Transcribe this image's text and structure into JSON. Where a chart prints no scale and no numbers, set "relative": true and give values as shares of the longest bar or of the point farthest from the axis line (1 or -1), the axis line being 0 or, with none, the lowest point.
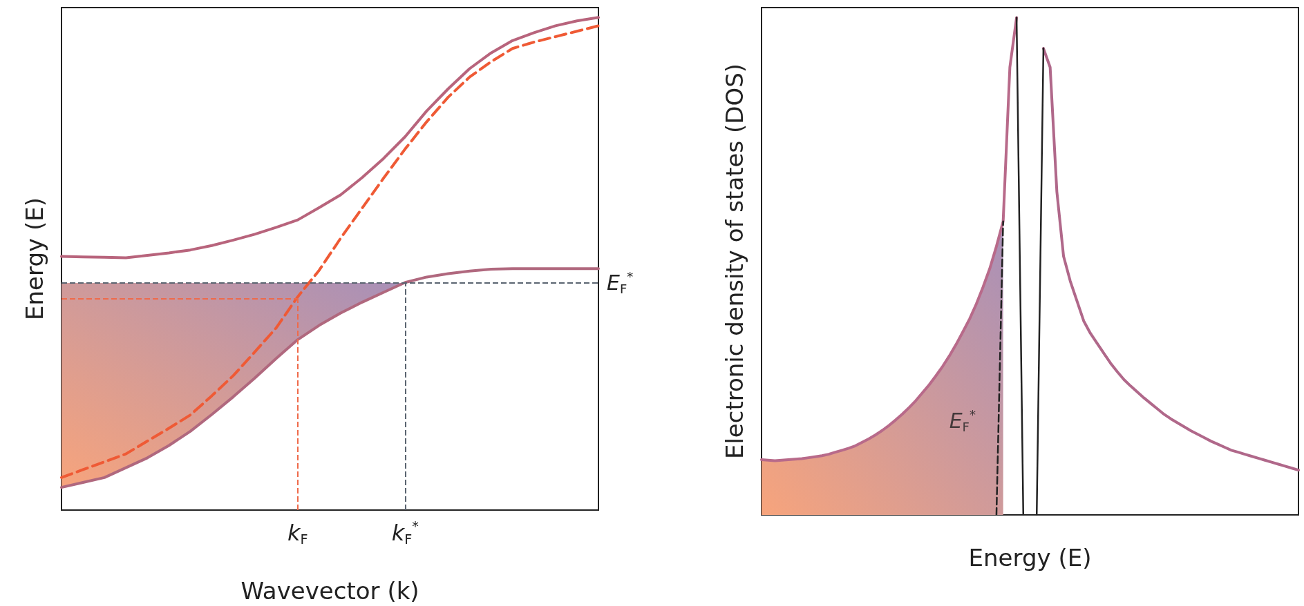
{
  "chart_data": [
    {
      "type": "line",
      "relative": true,
      "xlabel": "Wavevector (k)",
      "ylabel": "Energy (E)",
      "tick_labels": "x",
      "categories": [
        null,
        null,
        null,
        null,
        null,
        null,
        null,
        null,
        null,
        null,
        null,
        "k$_{F}$",
        null,
        null,
        null,
        null,
        "k$_{F}$$^{*}$",
        null,
        null,
        null,
        null,
        null,
        null,
        null,
        null,
        null
      ],
      "series": [
        {
          "color": "#b8647c",
          "values": [
            0.515,
            0.514,
            0.513,
            0.512,
            0.517,
            0.522,
            0.528,
            0.537,
            0.548,
            0.56,
            0.574,
            0.589,
            0.614,
            0.64,
            0.675,
            0.714,
            0.758,
            0.81,
            0.855,
            0.896,
            0.928,
            0.953,
            0.969,
            0.983,
            0.993,
            1
          ]
        },
        {
          "color": "#b0687e",
          "values": [
            0.046,
            0.056,
            0.066,
            0.086,
            0.106,
            0.131,
            0.16,
            0.194,
            0.23,
            0.268,
            0.308,
            0.346,
            0.375,
            0.4,
            0.422,
            0.442,
            0.462,
            0.473,
            0.48,
            0.485,
            0.489,
            0.49,
            0.49,
            0.49,
            0.49,
            0.49
          ],
          "lower": [
            0.046,
            0.056,
            0.066,
            0.086,
            0.106,
            0.131,
            0.16,
            0.194,
            0.23,
            0.268,
            0.308,
            0.346,
            0.375,
            0.4,
            0.422,
            0.442,
            0.461,
            null,
            null,
            null,
            null,
            null,
            null,
            null,
            null,
            null
          ],
          "upper": [
            0.461,
            0.461,
            0.461,
            0.461,
            0.461,
            0.461,
            0.461,
            0.461,
            0.461,
            0.461,
            0.461,
            0.461,
            0.461,
            0.461,
            0.461,
            0.461,
            0.461,
            null,
            null,
            null,
            null,
            null,
            null,
            null,
            null,
            null
          ]
        },
        {
          "color": "#ef5a35",
          "line_style": "dashed",
          "values": [
            0.066,
            0.082,
            0.098,
            0.114,
            0.14,
            0.166,
            0.193,
            0.232,
            0.273,
            0.321,
            0.37,
            0.433,
            0.487,
            0.552,
            0.613,
            0.674,
            0.733,
            0.788,
            0.838,
            0.879,
            0.91,
            0.937,
            0.95,
            0.961,
            0.972,
            0.983
          ]
        }
      ],
      "ref_lines": [
        {
          "axis": "y",
          "value": 0.461,
          "label": "E$_{F}$$^{*}$",
          "color": "#5a6470",
          "line_style": "dashed"
        },
        {
          "axis": "y",
          "value": 0.429,
          "color": "#ef6a4a",
          "line_style": "dashed"
        },
        {
          "axis": "x",
          "value": "k$_{F}$",
          "color": "#ef6a4a",
          "line_style": "dashed"
        },
        {
          "axis": "x",
          "value": "k$_{F}$$^{*}$",
          "color": "#5a6470",
          "line_style": "dashed"
        }
      ]
    },
    {
      "type": "line",
      "relative": true,
      "xlabel": "Energy (E)",
      "ylabel": "Electronic density of states (DOS)",
      "tick_labels": false,
      "categories": [
        null,
        null,
        null,
        null,
        null,
        null,
        null,
        null,
        null,
        null,
        null,
        null,
        null,
        null,
        null,
        null,
        null,
        null,
        null,
        null,
        null,
        null,
        null,
        null,
        null,
        null,
        null,
        null,
        null,
        null,
        null,
        null,
        null,
        null,
        null,
        null,
        null,
        null,
        null,
        null,
        null,
        null,
        null,
        null,
        null,
        null,
        null,
        null,
        null,
        null,
        null,
        null,
        null,
        null,
        null,
        null,
        null,
        null,
        null,
        null,
        null,
        null,
        null,
        null,
        null,
        null,
        null,
        null,
        null,
        null,
        null,
        null,
        null,
        null,
        null,
        null,
        null,
        null,
        null,
        null,
        null
      ],
      "series": [
        {
          "color": "#b86a8a",
          "values": [
            0.111,
            0.11,
            0.109,
            0.11,
            0.111,
            0.112,
            0.113,
            0.115,
            0.117,
            0.119,
            0.122,
            0.126,
            0.13,
            0.134,
            0.139,
            0.146,
            0.153,
            0.161,
            0.17,
            0.18,
            0.191,
            0.203,
            0.216,
            0.23,
            0.246,
            0.262,
            0.28,
            0.299,
            0.32,
            0.343,
            0.368,
            0.394,
            0.424,
            0.458,
            0.495,
            0.54,
            0.59,
            0.9,
            1,
            null,
            null,
            null,
            null,
            null,
            null,
            null,
            null,
            null,
            null,
            null,
            null,
            null,
            null,
            null,
            null,
            null,
            null,
            null,
            null,
            null,
            null,
            null,
            null,
            null,
            null,
            null,
            null,
            null,
            null,
            null,
            null,
            null,
            null,
            null,
            null,
            null,
            null,
            null,
            null,
            null,
            null
          ],
          "lower": [
            0,
            0,
            0,
            0,
            0,
            0,
            0,
            0,
            0,
            0,
            0,
            0,
            0,
            0,
            0,
            0,
            0,
            0,
            0,
            0,
            0,
            0,
            0,
            0,
            0,
            0,
            0,
            0,
            0,
            0,
            0,
            0,
            0,
            0,
            0,
            0,
            0,
            null,
            null,
            null,
            null,
            null,
            null,
            null,
            null,
            null,
            null,
            null,
            null,
            null,
            null,
            null,
            null,
            null,
            null,
            null,
            null,
            null,
            null,
            null,
            null,
            null,
            null,
            null,
            null,
            null,
            null,
            null,
            null,
            null,
            null,
            null,
            null,
            null,
            null,
            null,
            null,
            null,
            null,
            null,
            null
          ],
          "upper": [
            0.111,
            0.11,
            0.109,
            0.11,
            0.111,
            0.112,
            0.113,
            0.115,
            0.117,
            0.119,
            0.122,
            0.126,
            0.13,
            0.134,
            0.139,
            0.146,
            0.153,
            0.161,
            0.17,
            0.18,
            0.191,
            0.203,
            0.216,
            0.23,
            0.246,
            0.262,
            0.28,
            0.299,
            0.32,
            0.343,
            0.368,
            0.394,
            0.424,
            0.458,
            0.495,
            0.54,
            0.59,
            null,
            null,
            null,
            null,
            null,
            null,
            null,
            null,
            null,
            null,
            null,
            null,
            null,
            null,
            null,
            null,
            null,
            null,
            null,
            null,
            null,
            null,
            null,
            null,
            null,
            null,
            null,
            null,
            null,
            null,
            null,
            null,
            null,
            null,
            null,
            null,
            null,
            null,
            null,
            null,
            null,
            null,
            null,
            null
          ]
        },
        {
          "color": "#b0688a",
          "values": [
            null,
            null,
            null,
            null,
            null,
            null,
            null,
            null,
            null,
            null,
            null,
            null,
            null,
            null,
            null,
            null,
            null,
            null,
            null,
            null,
            null,
            null,
            null,
            null,
            null,
            null,
            null,
            null,
            null,
            null,
            null,
            null,
            null,
            null,
            null,
            null,
            null,
            null,
            null,
            null,
            null,
            null,
            0.938,
            0.9,
            0.65,
            0.52,
            0.47,
            0.43,
            0.39,
            0.365,
            0.345,
            0.325,
            0.305,
            0.288,
            0.272,
            0.259,
            0.247,
            0.235,
            0.224,
            0.213,
            0.202,
            0.193,
            0.185,
            0.177,
            0.169,
            0.162,
            0.155,
            0.148,
            0.142,
            0.136,
            0.13,
            0.126,
            0.122,
            0.118,
            0.114,
            0.11,
            0.106,
            0.102,
            0.098,
            0.094,
            0.09
          ]
        },
        {
          "color": "#222222",
          "values": [
            null,
            null,
            null,
            null,
            null,
            null,
            null,
            null,
            null,
            null,
            null,
            null,
            null,
            null,
            null,
            null,
            null,
            null,
            null,
            null,
            null,
            null,
            null,
            null,
            null,
            null,
            null,
            null,
            null,
            null,
            null,
            null,
            null,
            null,
            null,
            null,
            null,
            null,
            1,
            0,
            null,
            null,
            null,
            null,
            null,
            null,
            null,
            null,
            null,
            null,
            null,
            null,
            null,
            null,
            null,
            null,
            null,
            null,
            null,
            null,
            null,
            null,
            null,
            null,
            null,
            null,
            null,
            null,
            null,
            null,
            null,
            null,
            null,
            null,
            null,
            null,
            null,
            null,
            null,
            null,
            null
          ]
        },
        {
          "color": "#222222",
          "values": [
            null,
            null,
            null,
            null,
            null,
            null,
            null,
            null,
            null,
            null,
            null,
            null,
            null,
            null,
            null,
            null,
            null,
            null,
            null,
            null,
            null,
            null,
            null,
            null,
            null,
            null,
            null,
            null,
            null,
            null,
            null,
            null,
            null,
            null,
            null,
            null,
            null,
            null,
            null,
            null,
            null,
            0,
            0.938,
            null,
            null,
            null,
            null,
            null,
            null,
            null,
            null,
            null,
            null,
            null,
            null,
            null,
            null,
            null,
            null,
            null,
            null,
            null,
            null,
            null,
            null,
            null,
            null,
            null,
            null,
            null,
            null,
            null,
            null,
            null,
            null,
            null,
            null,
            null,
            null,
            null,
            null
          ]
        },
        {
          "color": "#222222",
          "line_style": "dashed",
          "values": [
            null,
            null,
            null,
            null,
            null,
            null,
            null,
            null,
            null,
            null,
            null,
            null,
            null,
            null,
            null,
            null,
            null,
            null,
            null,
            null,
            null,
            null,
            null,
            null,
            null,
            null,
            null,
            null,
            null,
            null,
            null,
            null,
            null,
            null,
            null,
            0,
            0.59,
            null,
            null,
            null,
            null,
            null,
            null,
            null,
            null,
            null,
            null,
            null,
            null,
            null,
            null,
            null,
            null,
            null,
            null,
            null,
            null,
            null,
            null,
            null,
            null,
            null,
            null,
            null,
            null,
            null,
            null,
            null,
            null,
            null,
            null,
            null,
            null,
            null,
            null,
            null,
            null,
            null,
            null,
            null,
            null
          ]
        }
      ],
      "annotations": [
        "E$_{F}$$^{*}$"
      ]
    }
  ]
}
